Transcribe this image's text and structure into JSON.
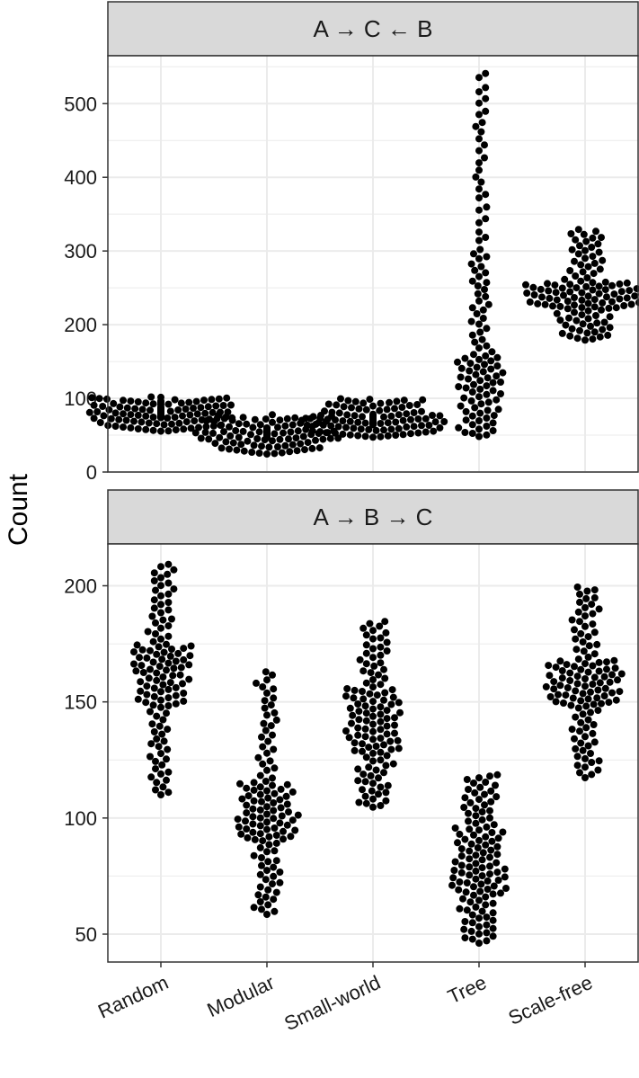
{
  "chart_data": {
    "type": "beeswarm",
    "ylabel": "Count",
    "xlabel": "",
    "categories": [
      "Random",
      "Modular",
      "Small-world",
      "Tree",
      "Scale-free"
    ],
    "grid": true,
    "colors": {
      "point": "#000000",
      "strip_fill": "#d9d9d9",
      "grid": "#ebebeb",
      "border": "#333333"
    },
    "panels": [
      {
        "strip": "A → C ← B",
        "ylim": [
          0,
          565
        ],
        "yticks": [
          0,
          100,
          200,
          300,
          400,
          500
        ],
        "groups": [
          {
            "category": "Random",
            "summary": {
              "min": 55,
              "q1": 72,
              "median": 80,
              "q3": 88,
              "max": 102
            },
            "n": 120
          },
          {
            "category": "Modular",
            "summary": {
              "min": 24,
              "q1": 44,
              "median": 52,
              "q3": 60,
              "max": 78
            },
            "n": 120
          },
          {
            "category": "Small-world",
            "summary": {
              "min": 47,
              "q1": 63,
              "median": 70,
              "q3": 78,
              "max": 100
            },
            "n": 120
          },
          {
            "category": "Tree",
            "summary": {
              "min": 47,
              "q1": 110,
              "median": 160,
              "q3": 300,
              "max": 545
            },
            "n": 120
          },
          {
            "category": "Scale-free",
            "summary": {
              "min": 178,
              "q1": 222,
              "median": 240,
              "q3": 258,
              "max": 330
            },
            "n": 120
          }
        ]
      },
      {
        "strip": "A → B → C",
        "ylim": [
          38,
          218
        ],
        "yticks": [
          50,
          100,
          150,
          200
        ],
        "groups": [
          {
            "category": "Random",
            "summary": {
              "min": 109,
              "q1": 148,
              "median": 163,
              "q3": 175,
              "max": 210
            },
            "n": 120
          },
          {
            "category": "Modular",
            "summary": {
              "min": 58,
              "q1": 90,
              "median": 102,
              "q3": 116,
              "max": 164
            },
            "n": 120
          },
          {
            "category": "Small-world",
            "summary": {
              "min": 104,
              "q1": 128,
              "median": 142,
              "q3": 156,
              "max": 185
            },
            "n": 120
          },
          {
            "category": "Tree",
            "summary": {
              "min": 46,
              "q1": 67,
              "median": 80,
              "q3": 96,
              "max": 119
            },
            "n": 120
          },
          {
            "category": "Scale-free",
            "summary": {
              "min": 117,
              "q1": 148,
              "median": 158,
              "q3": 168,
              "max": 200
            },
            "n": 120
          }
        ]
      }
    ]
  }
}
